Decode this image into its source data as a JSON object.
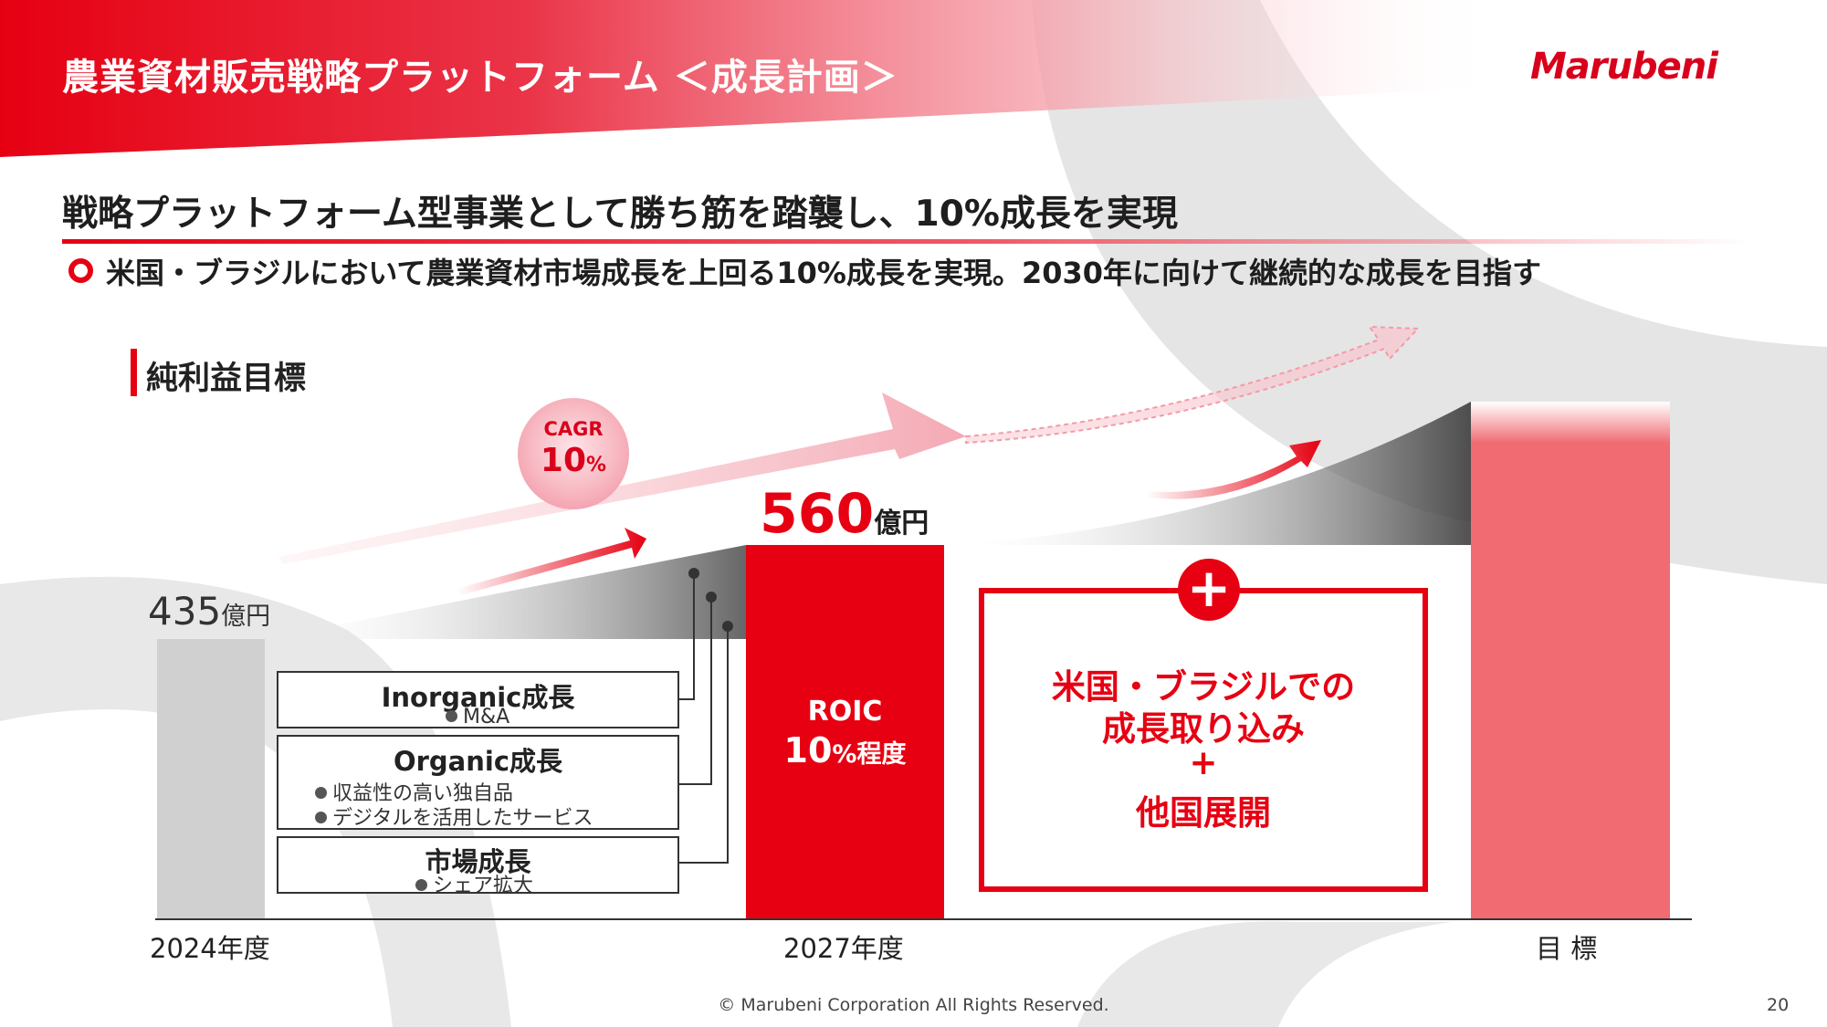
{
  "header": {
    "title": "農業資材販売戦略プラットフォーム ＜成長計画＞",
    "logo": "Marubeni"
  },
  "heading": "戦略プラットフォーム型事業として勝ち筋を踏襲し、10%成長を実現",
  "bullet": "米国・ブラジルにおいて農業資材市場成長を上回る10%成長を実現。2030年に向けて継続的な成長を目指す",
  "section_label": "純利益目標",
  "cagr": {
    "label": "CAGR",
    "value": "10",
    "unit": "%"
  },
  "values": {
    "y2024": {
      "number": "435",
      "unit": "億円"
    },
    "y2027": {
      "number": "560",
      "unit": "億円"
    }
  },
  "roic": {
    "label": "ROIC",
    "value": "10",
    "unit": "%程度"
  },
  "growth_boxes": [
    {
      "title": "Inorganic成長",
      "items": [
        "M&A"
      ]
    },
    {
      "title": "Organic成長",
      "items": [
        "収益性の高い独自品",
        "デジタルを活用したサービス"
      ]
    },
    {
      "title": "市場成長",
      "items": [
        "シェア拡大"
      ]
    }
  ],
  "expansion": {
    "plus": "+",
    "lines": [
      "米国・ブラジルでの",
      "成長取り込み",
      "+",
      "他国展開"
    ]
  },
  "x_labels": [
    "2024年度",
    "2027年度",
    "目 標"
  ],
  "footer": "© Marubeni Corporation All Rights Reserved.",
  "page_number": "20",
  "colors": {
    "brand_red": "#e60012",
    "goal_bar": "#f06b72",
    "gray": "#d0d0d0"
  }
}
